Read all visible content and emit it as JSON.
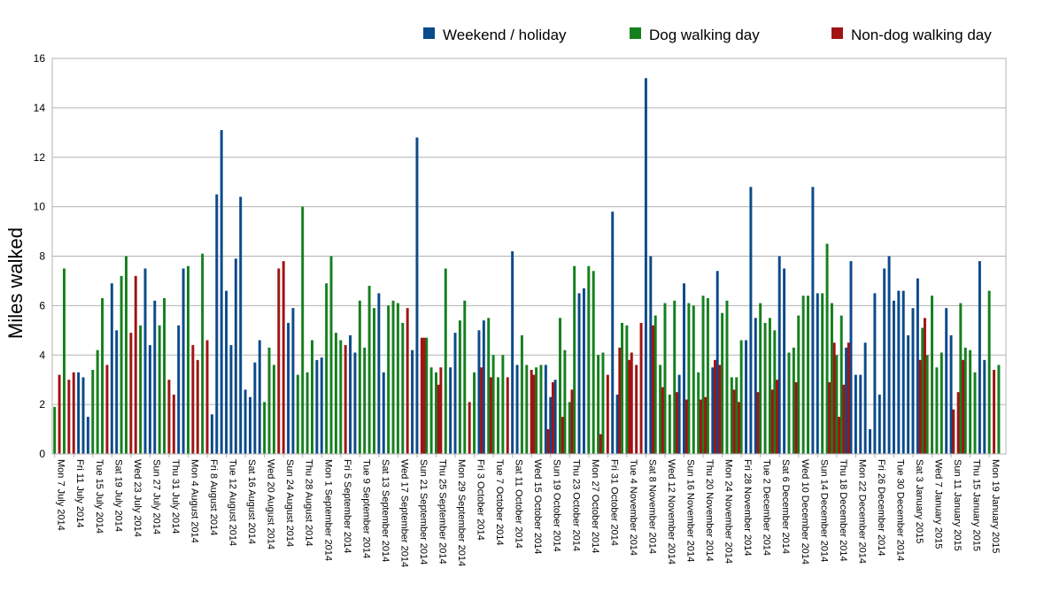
{
  "chart_data": {
    "type": "bar",
    "title": "",
    "xlabel": "",
    "ylabel": "Miles walked",
    "ylim": [
      0,
      16
    ],
    "yticks": [
      0,
      2,
      4,
      6,
      8,
      10,
      12,
      14,
      16
    ],
    "grid": true,
    "legend_position": "top-right",
    "categories_kind": "daily",
    "start_date": "2014-07-07",
    "day_count": 200,
    "tick_every": 4,
    "tick_labels": [
      "Mon 7 July 2014",
      "Fri 11 July 2014",
      "Tue 15 July 2014",
      "Sat 19 July 2014",
      "Wed 23 July 2014",
      "Sun 27 July 2014",
      "Thu 31 July 2014",
      "Mon 4 August 2014",
      "Fri 8 August 2014",
      "Tue 12 August 2014",
      "Sat 16 August 2014",
      "Wed 20 August 2014",
      "Sun 24 August 2014",
      "Thu 28 August 2014",
      "Mon 1 September 2014",
      "Fri 5 September 2014",
      "Tue 9 September 2014",
      "Sat 13 September 2014",
      "Wed 17 September 2014",
      "Sun 21 September 2014",
      "Thu 25 September 2014",
      "Mon 29 September 2014",
      "Fri 3 October 2014",
      "Tue 7 October 2014",
      "Sat 11 October 2014",
      "Wed 15 October 2014",
      "Sun 19 October 2014",
      "Thu 23 October 2014",
      "Mon 27 October 2014",
      "Fri 31 October 2014",
      "Tue 4 November 2014",
      "Sat 8 November 2014",
      "Wed 12 November 2014",
      "Sun 16 November 2014",
      "Thu 20 November 2014",
      "Mon 24 November 2014",
      "Fri 28 November 2014",
      "Tue 2 December 2014",
      "Sat 6 December 2014",
      "Wed 10 December 2014",
      "Sun 14 December 2014",
      "Thu 18 December 2014",
      "Mon 22 December 2014",
      "Fri 26 December 2014",
      "Tue 30 December 2014",
      "Sat 3 January 2015",
      "Wed 7 January 2015",
      "Sun 11 January 2015",
      "Thu 15 January 2015",
      "Mon 19 January 2015"
    ],
    "legend": [
      {
        "name": "Weekend / holiday",
        "color": "#0b4a8b"
      },
      {
        "name": "Dog walking day",
        "color": "#15801e"
      },
      {
        "name": "Non-dog walking day",
        "color": "#a01414"
      }
    ],
    "series": [
      {
        "name": "Weekend / holiday",
        "color": "#0b4a8b",
        "points": [
          [
            5,
            3.3
          ],
          [
            6,
            3.1
          ],
          [
            7,
            1.5
          ],
          [
            12,
            6.9
          ],
          [
            13,
            5.0
          ],
          [
            19,
            7.5
          ],
          [
            20,
            4.4
          ],
          [
            21,
            6.2
          ],
          [
            26,
            5.2
          ],
          [
            27,
            7.5
          ],
          [
            33,
            1.6
          ],
          [
            34,
            10.5
          ],
          [
            35,
            13.1
          ],
          [
            36,
            6.6
          ],
          [
            37,
            4.4
          ],
          [
            38,
            7.9
          ],
          [
            39,
            10.4
          ],
          [
            40,
            2.6
          ],
          [
            41,
            2.3
          ],
          [
            42,
            3.7
          ],
          [
            43,
            4.6
          ],
          [
            49,
            5.3
          ],
          [
            50,
            5.9
          ],
          [
            55,
            3.8
          ],
          [
            56,
            3.9
          ],
          [
            62,
            4.8
          ],
          [
            63,
            4.1
          ],
          [
            68,
            6.5
          ],
          [
            69,
            3.3
          ],
          [
            75,
            4.2
          ],
          [
            76,
            12.8
          ],
          [
            83,
            3.5
          ],
          [
            84,
            4.9
          ],
          [
            89,
            5.0
          ],
          [
            90,
            5.4
          ],
          [
            96,
            8.2
          ],
          [
            97,
            3.6
          ],
          [
            103,
            3.6
          ],
          [
            104,
            2.3
          ],
          [
            105,
            3.0
          ],
          [
            110,
            6.5
          ],
          [
            111,
            6.7
          ],
          [
            117,
            9.8
          ],
          [
            118,
            2.4
          ],
          [
            124,
            15.2
          ],
          [
            125,
            8.0
          ],
          [
            131,
            3.2
          ],
          [
            132,
            6.9
          ],
          [
            138,
            3.5
          ],
          [
            139,
            7.4
          ],
          [
            145,
            4.6
          ],
          [
            146,
            10.8
          ],
          [
            147,
            5.5
          ],
          [
            152,
            8.0
          ],
          [
            153,
            7.5
          ],
          [
            159,
            10.8
          ],
          [
            160,
            6.5
          ],
          [
            166,
            4.3
          ],
          [
            167,
            7.8
          ],
          [
            168,
            3.2
          ],
          [
            169,
            3.2
          ],
          [
            170,
            4.5
          ],
          [
            171,
            1.0
          ],
          [
            172,
            6.5
          ],
          [
            173,
            2.4
          ],
          [
            174,
            7.5
          ],
          [
            175,
            8.0
          ],
          [
            176,
            6.2
          ],
          [
            177,
            6.6
          ],
          [
            178,
            6.6
          ],
          [
            179,
            4.8
          ],
          [
            180,
            5.9
          ],
          [
            181,
            7.1
          ],
          [
            187,
            5.9
          ],
          [
            188,
            4.8
          ],
          [
            194,
            7.8
          ],
          [
            195,
            3.8
          ]
        ]
      },
      {
        "name": "Dog walking day",
        "color": "#15801e",
        "points": [
          [
            0,
            1.9
          ],
          [
            2,
            7.5
          ],
          [
            8,
            3.4
          ],
          [
            9,
            4.2
          ],
          [
            10,
            6.3
          ],
          [
            14,
            7.2
          ],
          [
            15,
            8.0
          ],
          [
            18,
            5.2
          ],
          [
            22,
            5.2
          ],
          [
            23,
            6.3
          ],
          [
            28,
            7.6
          ],
          [
            31,
            8.1
          ],
          [
            44,
            2.1
          ],
          [
            45,
            4.3
          ],
          [
            46,
            3.6
          ],
          [
            51,
            3.2
          ],
          [
            52,
            10.0
          ],
          [
            53,
            3.3
          ],
          [
            54,
            4.6
          ],
          [
            57,
            6.9
          ],
          [
            58,
            8.0
          ],
          [
            59,
            4.9
          ],
          [
            60,
            4.6
          ],
          [
            64,
            6.2
          ],
          [
            65,
            4.3
          ],
          [
            66,
            6.8
          ],
          [
            67,
            5.9
          ],
          [
            70,
            6.0
          ],
          [
            71,
            6.2
          ],
          [
            72,
            6.1
          ],
          [
            73,
            5.3
          ],
          [
            78,
            4.7
          ],
          [
            79,
            3.5
          ],
          [
            80,
            3.3
          ],
          [
            82,
            7.5
          ],
          [
            85,
            5.4
          ],
          [
            86,
            6.2
          ],
          [
            88,
            3.3
          ],
          [
            91,
            5.5
          ],
          [
            92,
            4.0
          ],
          [
            93,
            3.1
          ],
          [
            94,
            4.0
          ],
          [
            98,
            4.8
          ],
          [
            99,
            3.6
          ],
          [
            101,
            3.5
          ],
          [
            102,
            3.6
          ],
          [
            106,
            5.5
          ],
          [
            107,
            4.2
          ],
          [
            108,
            2.1
          ],
          [
            109,
            7.6
          ],
          [
            112,
            7.6
          ],
          [
            113,
            7.4
          ],
          [
            114,
            4.0
          ],
          [
            115,
            4.1
          ],
          [
            119,
            5.3
          ],
          [
            120,
            5.2
          ],
          [
            126,
            5.6
          ],
          [
            127,
            3.6
          ],
          [
            128,
            6.1
          ],
          [
            129,
            2.4
          ],
          [
            130,
            6.2
          ],
          [
            133,
            6.1
          ],
          [
            134,
            6.0
          ],
          [
            135,
            3.3
          ],
          [
            136,
            6.4
          ],
          [
            137,
            6.3
          ],
          [
            140,
            5.7
          ],
          [
            141,
            6.2
          ],
          [
            142,
            3.1
          ],
          [
            143,
            3.1
          ],
          [
            144,
            4.6
          ],
          [
            148,
            6.1
          ],
          [
            149,
            5.3
          ],
          [
            150,
            5.5
          ],
          [
            151,
            5.0
          ],
          [
            154,
            4.1
          ],
          [
            155,
            4.3
          ],
          [
            156,
            5.6
          ],
          [
            157,
            6.4
          ],
          [
            158,
            6.4
          ],
          [
            161,
            6.5
          ],
          [
            162,
            8.5
          ],
          [
            163,
            6.1
          ],
          [
            164,
            4.0
          ],
          [
            165,
            5.6
          ],
          [
            182,
            5.1
          ],
          [
            183,
            4.0
          ],
          [
            184,
            6.4
          ],
          [
            185,
            3.5
          ],
          [
            186,
            4.1
          ],
          [
            190,
            6.1
          ],
          [
            191,
            4.3
          ],
          [
            192,
            4.2
          ],
          [
            193,
            3.3
          ],
          [
            196,
            6.6
          ],
          [
            198,
            3.6
          ]
        ]
      },
      {
        "name": "Non-dog walking day",
        "color": "#a01414",
        "points": [
          [
            1,
            3.2
          ],
          [
            3,
            3.0
          ],
          [
            4,
            3.3
          ],
          [
            11,
            3.6
          ],
          [
            16,
            4.9
          ],
          [
            17,
            7.2
          ],
          [
            24,
            3.0
          ],
          [
            25,
            2.4
          ],
          [
            29,
            4.4
          ],
          [
            30,
            3.8
          ],
          [
            32,
            4.6
          ],
          [
            47,
            7.5
          ],
          [
            48,
            7.8
          ],
          [
            61,
            4.4
          ],
          [
            74,
            5.9
          ],
          [
            77,
            4.7
          ],
          [
            81,
            3.5
          ],
          [
            87,
            2.1
          ],
          [
            95,
            3.1
          ],
          [
            100,
            3.4
          ],
          [
            116,
            3.2
          ],
          [
            121,
            4.1
          ],
          [
            122,
            3.6
          ],
          [
            123,
            5.3
          ],
          [
            138.5,
            3.8
          ],
          [
            139.5,
            3.6
          ],
          [
            100.5,
            3.2
          ],
          [
            114.5,
            0.8
          ],
          [
            118.5,
            4.3
          ],
          [
            125.5,
            5.2
          ],
          [
            130.5,
            2.5
          ],
          [
            135.5,
            2.2
          ],
          [
            142.5,
            2.6
          ],
          [
            147.5,
            2.5
          ],
          [
            155.5,
            2.9
          ],
          [
            162.5,
            2.9
          ],
          [
            163.5,
            4.5
          ],
          [
            164.5,
            1.5
          ],
          [
            165.5,
            2.8
          ],
          [
            166.5,
            4.5
          ],
          [
            181.5,
            3.8
          ],
          [
            182.5,
            5.5
          ],
          [
            188.5,
            1.8
          ],
          [
            189.5,
            2.5
          ],
          [
            190.5,
            3.8
          ],
          [
            197,
            3.4
          ],
          [
            103.5,
            1.0
          ],
          [
            104.5,
            2.9
          ],
          [
            106.5,
            1.5
          ],
          [
            108.5,
            2.6
          ],
          [
            120.5,
            3.8
          ],
          [
            127.5,
            2.7
          ],
          [
            132.5,
            2.2
          ],
          [
            136.5,
            2.3
          ],
          [
            143.5,
            2.1
          ],
          [
            150.5,
            2.6
          ],
          [
            151.5,
            3.0
          ],
          [
            77.5,
            4.7
          ],
          [
            80.5,
            2.8
          ],
          [
            89.5,
            3.5
          ],
          [
            91.5,
            3.1
          ]
        ]
      }
    ]
  }
}
